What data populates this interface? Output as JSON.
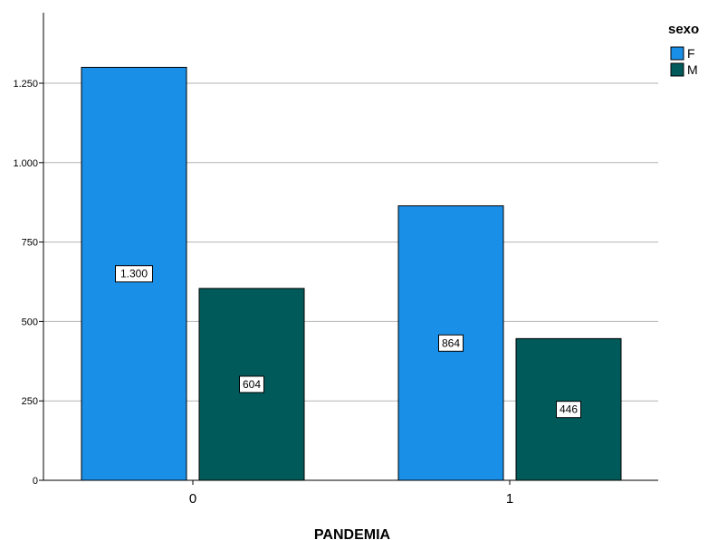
{
  "chart_data": {
    "type": "bar",
    "categories": [
      "0",
      "1"
    ],
    "xlabel": "PANDEMIA",
    "ylabel": "",
    "ylim": [
      0,
      1475
    ],
    "yticks": [
      0,
      250,
      500,
      750,
      1000,
      1250
    ],
    "ytick_labels": [
      "0",
      "250",
      "500",
      "750",
      "1.000",
      "1.250"
    ],
    "grid": true,
    "legend": {
      "title": "sexo",
      "placement": "top-right"
    },
    "series": [
      {
        "name": "F",
        "color": "#1a8fe8",
        "values": [
          1300,
          864
        ],
        "labels": [
          "1.300",
          "864"
        ]
      },
      {
        "name": "M",
        "color": "#005a5a",
        "values": [
          604,
          446
        ],
        "labels": [
          "604",
          "446"
        ]
      }
    ]
  }
}
